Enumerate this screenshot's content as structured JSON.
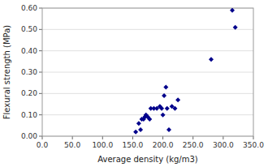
{
  "chart_data": {
    "type": "scatter",
    "xlabel": "Average density (kg/m3)",
    "ylabel": "Flexural strength (MPa)",
    "x": [
      155,
      160,
      163,
      165,
      168,
      170,
      172,
      175,
      178,
      180,
      185,
      190,
      195,
      198,
      200,
      202,
      205,
      207,
      210,
      215,
      220,
      225,
      280,
      315,
      320
    ],
    "values": [
      0.02,
      0.06,
      0.03,
      0.08,
      0.08,
      0.09,
      0.1,
      0.09,
      0.08,
      0.13,
      0.13,
      0.13,
      0.14,
      0.13,
      0.1,
      0.19,
      0.23,
      0.13,
      0.03,
      0.14,
      0.13,
      0.17,
      0.36,
      0.59,
      0.51
    ],
    "color": "#00008B",
    "marker": "diamond",
    "xlim": [
      0.0,
      350.0
    ],
    "ylim": [
      0.0,
      0.6
    ],
    "xticks": [
      {
        "value": 0,
        "label": "0.0"
      },
      {
        "value": 50,
        "label": "50.0"
      },
      {
        "value": 100,
        "label": "100.0"
      },
      {
        "value": 150,
        "label": "150.0"
      },
      {
        "value": 200,
        "label": "200.0"
      },
      {
        "value": 250,
        "label": "250.0"
      },
      {
        "value": 300,
        "label": "300.0"
      },
      {
        "value": 350,
        "label": "350.0"
      }
    ],
    "yticks": [
      {
        "value": 0,
        "label": "0.00"
      },
      {
        "value": 0.1,
        "label": "0.10"
      },
      {
        "value": 0.2,
        "label": "0.20"
      },
      {
        "value": 0.3,
        "label": "0.30"
      },
      {
        "value": 0.4,
        "label": "0.40"
      },
      {
        "value": 0.5,
        "label": "0.50"
      },
      {
        "value": 0.6,
        "label": "0.60"
      }
    ],
    "grid": true
  }
}
